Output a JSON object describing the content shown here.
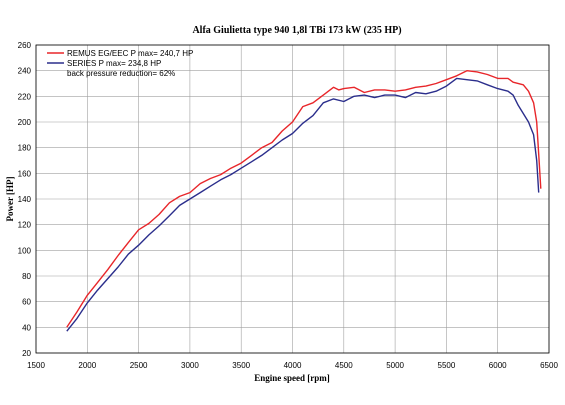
{
  "chart_data": {
    "type": "line",
    "title": "Alfa Giulietta type 940 1,8l TBi 173 kW (235 HP)",
    "xlabel": "Engine speed [rpm]",
    "ylabel": "Power [HP]",
    "xlim": [
      1500,
      6500
    ],
    "ylim": [
      20,
      260
    ],
    "xticks": [
      1500,
      2000,
      2500,
      3000,
      3500,
      4000,
      4500,
      5000,
      5500,
      6000,
      6500
    ],
    "yticks": [
      20,
      40,
      60,
      80,
      100,
      120,
      140,
      160,
      180,
      200,
      220,
      240,
      260
    ],
    "grid": true,
    "legend_position": "top-left",
    "annotation": "back pressure reduction= 62%",
    "series": [
      {
        "name": "REMUS EG/EEC P max= 240,7 HP",
        "color": "#e8262a",
        "points": [
          [
            1800,
            40
          ],
          [
            1900,
            52
          ],
          [
            2000,
            65
          ],
          [
            2100,
            75
          ],
          [
            2200,
            85
          ],
          [
            2300,
            96
          ],
          [
            2400,
            106
          ],
          [
            2500,
            116
          ],
          [
            2600,
            121
          ],
          [
            2700,
            128
          ],
          [
            2800,
            137
          ],
          [
            2900,
            142
          ],
          [
            3000,
            145
          ],
          [
            3100,
            152
          ],
          [
            3200,
            156
          ],
          [
            3300,
            159
          ],
          [
            3400,
            164
          ],
          [
            3500,
            168
          ],
          [
            3600,
            174
          ],
          [
            3700,
            180
          ],
          [
            3800,
            184
          ],
          [
            3900,
            193
          ],
          [
            4000,
            200
          ],
          [
            4100,
            212
          ],
          [
            4200,
            215
          ],
          [
            4300,
            221
          ],
          [
            4400,
            227
          ],
          [
            4450,
            225
          ],
          [
            4500,
            226
          ],
          [
            4600,
            227
          ],
          [
            4700,
            223
          ],
          [
            4800,
            225
          ],
          [
            4900,
            225
          ],
          [
            5000,
            224
          ],
          [
            5100,
            225
          ],
          [
            5200,
            227
          ],
          [
            5300,
            228
          ],
          [
            5400,
            230
          ],
          [
            5500,
            233
          ],
          [
            5600,
            236
          ],
          [
            5700,
            240
          ],
          [
            5800,
            239
          ],
          [
            5900,
            237
          ],
          [
            6000,
            234
          ],
          [
            6100,
            234
          ],
          [
            6150,
            231
          ],
          [
            6250,
            229
          ],
          [
            6300,
            224
          ],
          [
            6350,
            215
          ],
          [
            6380,
            200
          ],
          [
            6400,
            175
          ],
          [
            6420,
            148
          ]
        ]
      },
      {
        "name": "SERIES P max= 234,8 HP",
        "color": "#2b2e8c",
        "points": [
          [
            1800,
            37
          ],
          [
            1900,
            47
          ],
          [
            2000,
            59
          ],
          [
            2100,
            69
          ],
          [
            2200,
            78
          ],
          [
            2300,
            87
          ],
          [
            2400,
            97
          ],
          [
            2500,
            104
          ],
          [
            2600,
            112
          ],
          [
            2700,
            119
          ],
          [
            2800,
            127
          ],
          [
            2900,
            135
          ],
          [
            3000,
            140
          ],
          [
            3100,
            145
          ],
          [
            3200,
            150
          ],
          [
            3300,
            155
          ],
          [
            3400,
            159
          ],
          [
            3500,
            164
          ],
          [
            3600,
            169
          ],
          [
            3700,
            174
          ],
          [
            3800,
            180
          ],
          [
            3900,
            186
          ],
          [
            4000,
            191
          ],
          [
            4100,
            199
          ],
          [
            4200,
            205
          ],
          [
            4300,
            215
          ],
          [
            4400,
            218
          ],
          [
            4500,
            216
          ],
          [
            4600,
            220
          ],
          [
            4700,
            221
          ],
          [
            4800,
            219
          ],
          [
            4900,
            221
          ],
          [
            5000,
            221
          ],
          [
            5100,
            219
          ],
          [
            5200,
            223
          ],
          [
            5300,
            222
          ],
          [
            5400,
            224
          ],
          [
            5500,
            228
          ],
          [
            5600,
            234
          ],
          [
            5700,
            233
          ],
          [
            5800,
            232
          ],
          [
            5900,
            229
          ],
          [
            6000,
            226
          ],
          [
            6100,
            224
          ],
          [
            6150,
            221
          ],
          [
            6200,
            213
          ],
          [
            6300,
            200
          ],
          [
            6350,
            190
          ],
          [
            6380,
            170
          ],
          [
            6400,
            145
          ]
        ]
      }
    ]
  }
}
